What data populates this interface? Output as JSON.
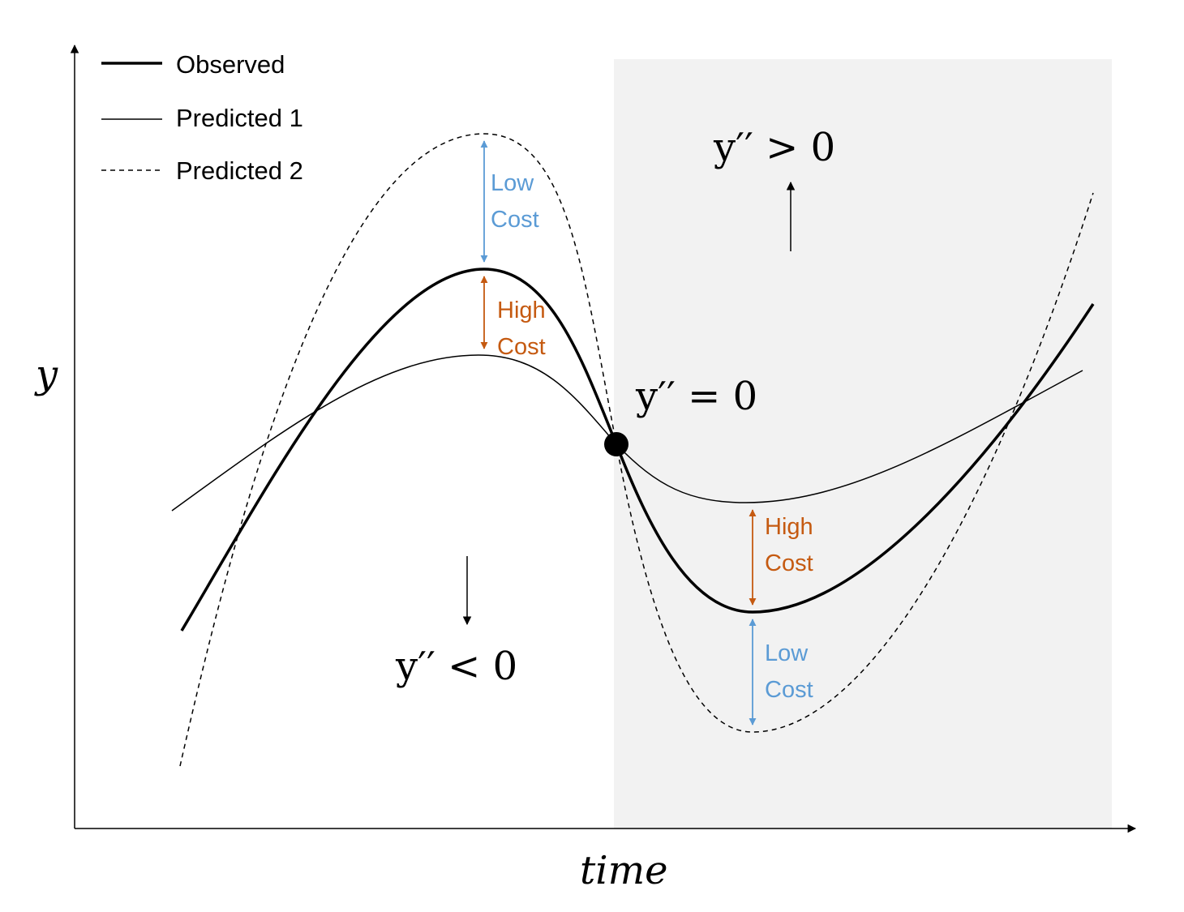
{
  "legend": {
    "observed": "Observed",
    "predicted1": "Predicted 1",
    "predicted2": "Predicted 2"
  },
  "axes": {
    "y_label": "y",
    "x_label": "time"
  },
  "annotations": {
    "concave": "y′′ < 0",
    "inflection": "y′′ = 0",
    "convex": "y′′ > 0"
  },
  "costs": {
    "peak_low_line1": "Low",
    "peak_low_line2": "Cost",
    "peak_high_line1": "High",
    "peak_high_line2": "Cost",
    "trough_high_line1": "High",
    "trough_high_line2": "Cost",
    "trough_low_line1": "Low",
    "trough_low_line2": "Cost"
  },
  "colors": {
    "low_cost": "#5B9BD5",
    "high_cost": "#C55A11",
    "shaded_region": "#F2F2F2",
    "curves": "#000000"
  }
}
